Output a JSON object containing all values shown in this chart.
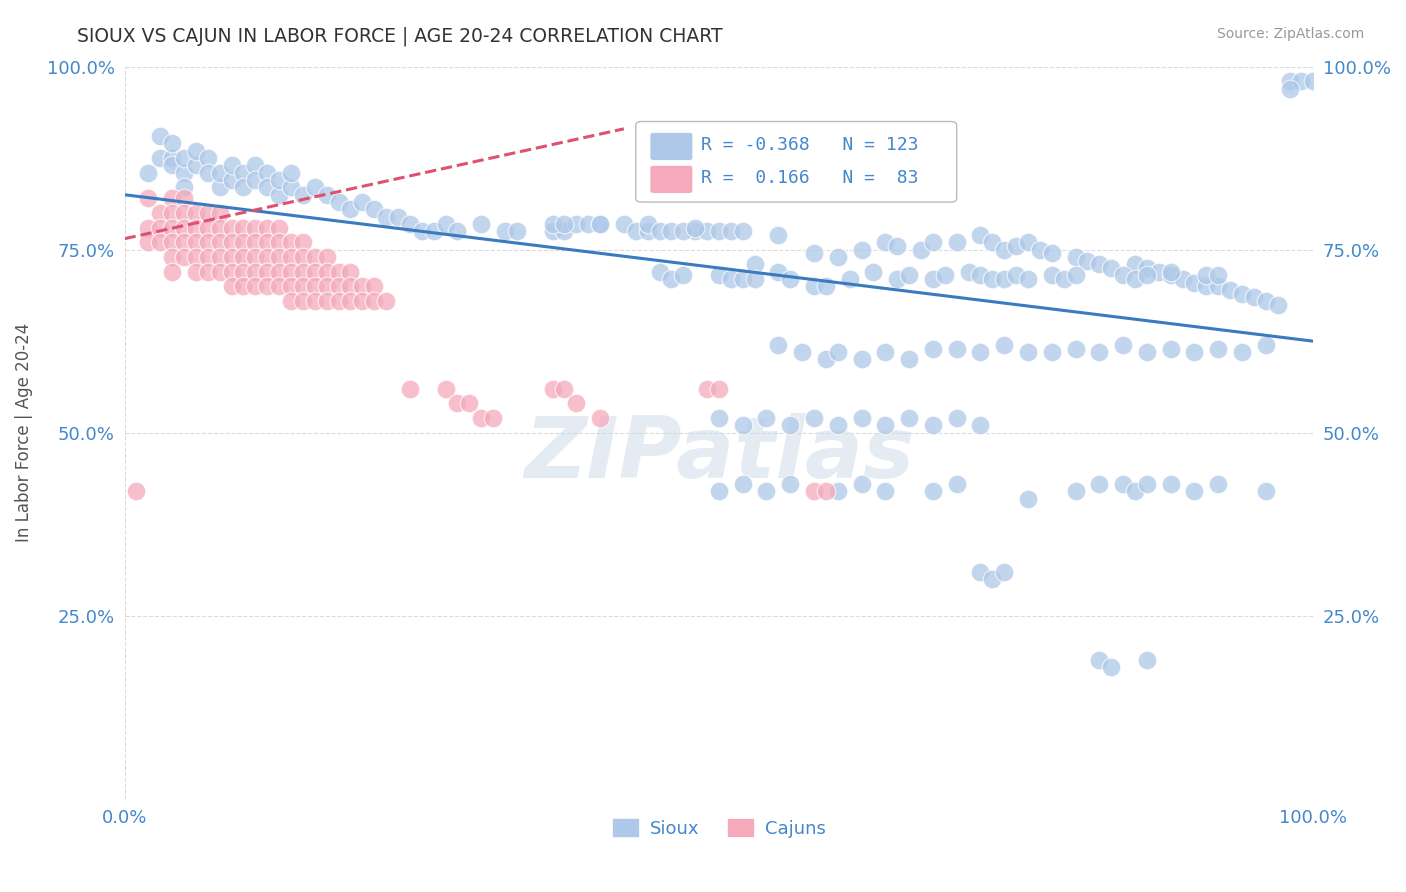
{
  "title": "SIOUX VS CAJUN IN LABOR FORCE | AGE 20-24 CORRELATION CHART",
  "xlabel": "",
  "ylabel": "In Labor Force | Age 20-24",
  "source_text": "Source: ZipAtlas.com",
  "legend_sioux": {
    "R": -0.368,
    "N": 123,
    "label": "Sioux"
  },
  "legend_cajun": {
    "R": 0.166,
    "N": 83,
    "label": "Cajuns"
  },
  "xlim": [
    0.0,
    1.0
  ],
  "ylim": [
    0.0,
    1.0
  ],
  "xtick_labels": [
    "0.0%",
    "100.0%"
  ],
  "ytick_labels": [
    "25.0%",
    "50.0%",
    "75.0%",
    "100.0%"
  ],
  "ytick_positions": [
    0.25,
    0.5,
    0.75,
    1.0
  ],
  "background_color": "#ffffff",
  "grid_color": "#cccccc",
  "sioux_color": "#adc8e8",
  "cajun_color": "#f4aaba",
  "sioux_line_color": "#3a7abf",
  "cajun_line_color": "#e05070",
  "title_color": "#333333",
  "label_color": "#4488cc",
  "watermark_color": "#ccd8e8",
  "watermark_text": "ZIPatlas",
  "sioux_line_x": [
    0.0,
    1.0
  ],
  "sioux_line_y": [
    0.825,
    0.625
  ],
  "cajun_line_x": [
    0.0,
    0.42
  ],
  "cajun_line_y": [
    0.765,
    0.915
  ],
  "sioux_points": [
    [
      0.02,
      0.855
    ],
    [
      0.03,
      0.875
    ],
    [
      0.03,
      0.905
    ],
    [
      0.04,
      0.875
    ],
    [
      0.04,
      0.895
    ],
    [
      0.04,
      0.865
    ],
    [
      0.05,
      0.855
    ],
    [
      0.05,
      0.875
    ],
    [
      0.05,
      0.835
    ],
    [
      0.06,
      0.865
    ],
    [
      0.06,
      0.885
    ],
    [
      0.07,
      0.875
    ],
    [
      0.07,
      0.855
    ],
    [
      0.08,
      0.835
    ],
    [
      0.08,
      0.855
    ],
    [
      0.09,
      0.845
    ],
    [
      0.09,
      0.865
    ],
    [
      0.1,
      0.855
    ],
    [
      0.1,
      0.835
    ],
    [
      0.11,
      0.865
    ],
    [
      0.11,
      0.845
    ],
    [
      0.12,
      0.855
    ],
    [
      0.12,
      0.835
    ],
    [
      0.13,
      0.825
    ],
    [
      0.13,
      0.845
    ],
    [
      0.14,
      0.835
    ],
    [
      0.14,
      0.855
    ],
    [
      0.15,
      0.825
    ],
    [
      0.16,
      0.835
    ],
    [
      0.17,
      0.825
    ],
    [
      0.18,
      0.815
    ],
    [
      0.19,
      0.805
    ],
    [
      0.2,
      0.815
    ],
    [
      0.21,
      0.805
    ],
    [
      0.22,
      0.795
    ],
    [
      0.23,
      0.795
    ],
    [
      0.24,
      0.785
    ],
    [
      0.25,
      0.775
    ],
    [
      0.26,
      0.775
    ],
    [
      0.27,
      0.785
    ],
    [
      0.28,
      0.775
    ],
    [
      0.3,
      0.785
    ],
    [
      0.32,
      0.775
    ],
    [
      0.33,
      0.775
    ],
    [
      0.36,
      0.775
    ],
    [
      0.37,
      0.775
    ],
    [
      0.38,
      0.785
    ],
    [
      0.39,
      0.785
    ],
    [
      0.4,
      0.785
    ],
    [
      0.42,
      0.785
    ],
    [
      0.43,
      0.775
    ],
    [
      0.44,
      0.775
    ],
    [
      0.48,
      0.775
    ],
    [
      0.49,
      0.775
    ],
    [
      0.5,
      0.775
    ],
    [
      0.51,
      0.775
    ],
    [
      0.52,
      0.775
    ],
    [
      0.44,
      0.785
    ],
    [
      0.45,
      0.775
    ],
    [
      0.46,
      0.775
    ],
    [
      0.47,
      0.775
    ],
    [
      0.36,
      0.785
    ],
    [
      0.37,
      0.785
    ],
    [
      0.4,
      0.785
    ],
    [
      0.48,
      0.78
    ],
    [
      0.55,
      0.77
    ],
    [
      0.58,
      0.745
    ],
    [
      0.6,
      0.74
    ],
    [
      0.62,
      0.75
    ],
    [
      0.64,
      0.76
    ],
    [
      0.65,
      0.755
    ],
    [
      0.67,
      0.75
    ],
    [
      0.68,
      0.76
    ],
    [
      0.7,
      0.76
    ],
    [
      0.72,
      0.77
    ],
    [
      0.73,
      0.76
    ],
    [
      0.74,
      0.75
    ],
    [
      0.75,
      0.755
    ],
    [
      0.76,
      0.76
    ],
    [
      0.77,
      0.75
    ],
    [
      0.78,
      0.745
    ],
    [
      0.8,
      0.74
    ],
    [
      0.81,
      0.735
    ],
    [
      0.82,
      0.73
    ],
    [
      0.83,
      0.725
    ],
    [
      0.85,
      0.73
    ],
    [
      0.86,
      0.725
    ],
    [
      0.87,
      0.72
    ],
    [
      0.88,
      0.715
    ],
    [
      0.89,
      0.71
    ],
    [
      0.9,
      0.705
    ],
    [
      0.91,
      0.7
    ],
    [
      0.92,
      0.7
    ],
    [
      0.93,
      0.695
    ],
    [
      0.94,
      0.69
    ],
    [
      0.95,
      0.685
    ],
    [
      0.96,
      0.68
    ],
    [
      0.97,
      0.675
    ],
    [
      0.98,
      0.98
    ],
    [
      0.99,
      0.98
    ],
    [
      1.0,
      0.98
    ],
    [
      0.98,
      0.97
    ],
    [
      0.53,
      0.73
    ],
    [
      0.55,
      0.72
    ],
    [
      0.56,
      0.71
    ],
    [
      0.58,
      0.7
    ],
    [
      0.45,
      0.72
    ],
    [
      0.46,
      0.71
    ],
    [
      0.47,
      0.715
    ],
    [
      0.5,
      0.715
    ],
    [
      0.51,
      0.71
    ],
    [
      0.52,
      0.71
    ],
    [
      0.53,
      0.71
    ],
    [
      0.59,
      0.7
    ],
    [
      0.61,
      0.71
    ],
    [
      0.63,
      0.72
    ],
    [
      0.65,
      0.71
    ],
    [
      0.66,
      0.715
    ],
    [
      0.68,
      0.71
    ],
    [
      0.69,
      0.715
    ],
    [
      0.71,
      0.72
    ],
    [
      0.72,
      0.715
    ],
    [
      0.73,
      0.71
    ],
    [
      0.74,
      0.71
    ],
    [
      0.75,
      0.715
    ],
    [
      0.76,
      0.71
    ],
    [
      0.78,
      0.715
    ],
    [
      0.79,
      0.71
    ],
    [
      0.8,
      0.715
    ],
    [
      0.84,
      0.715
    ],
    [
      0.85,
      0.71
    ],
    [
      0.86,
      0.715
    ],
    [
      0.88,
      0.72
    ],
    [
      0.91,
      0.715
    ],
    [
      0.92,
      0.715
    ],
    [
      0.55,
      0.62
    ],
    [
      0.57,
      0.61
    ],
    [
      0.59,
      0.6
    ],
    [
      0.6,
      0.61
    ],
    [
      0.62,
      0.6
    ],
    [
      0.64,
      0.61
    ],
    [
      0.66,
      0.6
    ],
    [
      0.68,
      0.615
    ],
    [
      0.7,
      0.615
    ],
    [
      0.72,
      0.61
    ],
    [
      0.74,
      0.62
    ],
    [
      0.76,
      0.61
    ],
    [
      0.78,
      0.61
    ],
    [
      0.8,
      0.615
    ],
    [
      0.82,
      0.61
    ],
    [
      0.84,
      0.62
    ],
    [
      0.86,
      0.61
    ],
    [
      0.88,
      0.615
    ],
    [
      0.9,
      0.61
    ],
    [
      0.92,
      0.615
    ],
    [
      0.94,
      0.61
    ],
    [
      0.96,
      0.62
    ],
    [
      0.5,
      0.52
    ],
    [
      0.52,
      0.51
    ],
    [
      0.54,
      0.52
    ],
    [
      0.56,
      0.51
    ],
    [
      0.58,
      0.52
    ],
    [
      0.6,
      0.51
    ],
    [
      0.62,
      0.52
    ],
    [
      0.64,
      0.51
    ],
    [
      0.66,
      0.52
    ],
    [
      0.68,
      0.51
    ],
    [
      0.7,
      0.52
    ],
    [
      0.72,
      0.51
    ],
    [
      0.5,
      0.42
    ],
    [
      0.52,
      0.43
    ],
    [
      0.54,
      0.42
    ],
    [
      0.56,
      0.43
    ],
    [
      0.6,
      0.42
    ],
    [
      0.62,
      0.43
    ],
    [
      0.64,
      0.42
    ],
    [
      0.68,
      0.42
    ],
    [
      0.7,
      0.43
    ],
    [
      0.76,
      0.41
    ],
    [
      0.8,
      0.42
    ],
    [
      0.82,
      0.43
    ],
    [
      0.84,
      0.43
    ],
    [
      0.85,
      0.42
    ],
    [
      0.86,
      0.43
    ],
    [
      0.88,
      0.43
    ],
    [
      0.9,
      0.42
    ],
    [
      0.92,
      0.43
    ],
    [
      0.96,
      0.42
    ],
    [
      0.72,
      0.31
    ],
    [
      0.73,
      0.3
    ],
    [
      0.74,
      0.31
    ],
    [
      0.82,
      0.19
    ],
    [
      0.83,
      0.18
    ],
    [
      0.86,
      0.19
    ]
  ],
  "cajun_points": [
    [
      0.01,
      0.42
    ],
    [
      0.02,
      0.82
    ],
    [
      0.02,
      0.78
    ],
    [
      0.02,
      0.76
    ],
    [
      0.03,
      0.8
    ],
    [
      0.03,
      0.78
    ],
    [
      0.03,
      0.76
    ],
    [
      0.04,
      0.82
    ],
    [
      0.04,
      0.8
    ],
    [
      0.04,
      0.78
    ],
    [
      0.04,
      0.76
    ],
    [
      0.04,
      0.74
    ],
    [
      0.04,
      0.72
    ],
    [
      0.05,
      0.82
    ],
    [
      0.05,
      0.8
    ],
    [
      0.05,
      0.78
    ],
    [
      0.05,
      0.76
    ],
    [
      0.05,
      0.74
    ],
    [
      0.06,
      0.8
    ],
    [
      0.06,
      0.78
    ],
    [
      0.06,
      0.76
    ],
    [
      0.06,
      0.74
    ],
    [
      0.06,
      0.72
    ],
    [
      0.07,
      0.8
    ],
    [
      0.07,
      0.78
    ],
    [
      0.07,
      0.76
    ],
    [
      0.07,
      0.74
    ],
    [
      0.07,
      0.72
    ],
    [
      0.08,
      0.8
    ],
    [
      0.08,
      0.78
    ],
    [
      0.08,
      0.76
    ],
    [
      0.08,
      0.74
    ],
    [
      0.08,
      0.72
    ],
    [
      0.09,
      0.78
    ],
    [
      0.09,
      0.76
    ],
    [
      0.09,
      0.74
    ],
    [
      0.09,
      0.72
    ],
    [
      0.09,
      0.7
    ],
    [
      0.1,
      0.78
    ],
    [
      0.1,
      0.76
    ],
    [
      0.1,
      0.74
    ],
    [
      0.1,
      0.72
    ],
    [
      0.1,
      0.7
    ],
    [
      0.11,
      0.78
    ],
    [
      0.11,
      0.76
    ],
    [
      0.11,
      0.74
    ],
    [
      0.11,
      0.72
    ],
    [
      0.11,
      0.7
    ],
    [
      0.12,
      0.78
    ],
    [
      0.12,
      0.76
    ],
    [
      0.12,
      0.74
    ],
    [
      0.12,
      0.72
    ],
    [
      0.12,
      0.7
    ],
    [
      0.13,
      0.78
    ],
    [
      0.13,
      0.76
    ],
    [
      0.13,
      0.74
    ],
    [
      0.13,
      0.72
    ],
    [
      0.13,
      0.7
    ],
    [
      0.14,
      0.76
    ],
    [
      0.14,
      0.74
    ],
    [
      0.14,
      0.72
    ],
    [
      0.14,
      0.7
    ],
    [
      0.14,
      0.68
    ],
    [
      0.15,
      0.76
    ],
    [
      0.15,
      0.74
    ],
    [
      0.15,
      0.72
    ],
    [
      0.15,
      0.7
    ],
    [
      0.15,
      0.68
    ],
    [
      0.16,
      0.74
    ],
    [
      0.16,
      0.72
    ],
    [
      0.16,
      0.7
    ],
    [
      0.16,
      0.68
    ],
    [
      0.17,
      0.74
    ],
    [
      0.17,
      0.72
    ],
    [
      0.17,
      0.7
    ],
    [
      0.17,
      0.68
    ],
    [
      0.18,
      0.72
    ],
    [
      0.18,
      0.7
    ],
    [
      0.18,
      0.68
    ],
    [
      0.19,
      0.72
    ],
    [
      0.19,
      0.7
    ],
    [
      0.19,
      0.68
    ],
    [
      0.2,
      0.7
    ],
    [
      0.2,
      0.68
    ],
    [
      0.21,
      0.7
    ],
    [
      0.21,
      0.68
    ],
    [
      0.22,
      0.68
    ],
    [
      0.24,
      0.56
    ],
    [
      0.27,
      0.56
    ],
    [
      0.28,
      0.54
    ],
    [
      0.29,
      0.54
    ],
    [
      0.3,
      0.52
    ],
    [
      0.31,
      0.52
    ],
    [
      0.36,
      0.56
    ],
    [
      0.37,
      0.56
    ],
    [
      0.38,
      0.54
    ],
    [
      0.4,
      0.52
    ],
    [
      0.49,
      0.56
    ],
    [
      0.5,
      0.56
    ],
    [
      0.58,
      0.42
    ],
    [
      0.59,
      0.42
    ]
  ]
}
